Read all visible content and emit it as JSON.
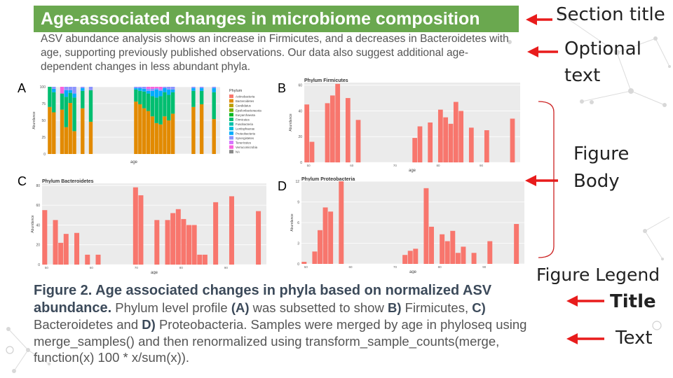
{
  "section_title": "Age-associated changes in microbiome composition",
  "intro_text": "ASV abundance analysis shows an increase in Firmicutes, and a decreases in Bacteroidetes with age, supporting previously published observations. Our data also suggest additional age-dependent changes in less abundant phyla.",
  "panels": {
    "a": {
      "letter": "A"
    },
    "b": {
      "letter": "B",
      "title": "Phylum Firmicutes"
    },
    "c": {
      "letter": "C",
      "title": "Phylum Bacteroidetes"
    },
    "d": {
      "letter": "D",
      "title": "Phylum Proteobacteria"
    }
  },
  "annotations": {
    "section_title": "Section title",
    "optional_text_1": "Optional",
    "optional_text_2": "text",
    "figure_body_1": "Figure",
    "figure_body_2": "Body",
    "figure_legend": "Figure Legend",
    "legend_title": "Title",
    "legend_text": "Text"
  },
  "caption": {
    "title_part": "Figure 2. Age associated changes in phyla based on normalized ASV abundance.",
    "t1": " Phylum level profile ",
    "b1": "(A)",
    "t2": " was subsetted to show ",
    "b2": "B)",
    "t3": " Firmicutes, ",
    "b3": "C)",
    "t4": " Bacteroidetes and ",
    "b4": "D)",
    "t5": " Proteobacteria. Samples were merged by age in phyloseq using merge_samples() and then renormalized using transform_sample_counts(merge, function(x) 100 * x/sum(x))."
  },
  "colors": {
    "green": "#6aa84f",
    "arrow": "#e81c1c",
    "bar": "#f8766d",
    "panel_bg": "#ebebeb"
  },
  "chart_data": [
    {
      "type": "bar",
      "id": "a",
      "stacked": true,
      "title": "",
      "xlabel": "age",
      "ylabel": "Abundance",
      "ylim": [
        0,
        100
      ],
      "yticks": [
        0,
        25,
        50,
        75,
        100
      ],
      "yticklabels": [
        "0",
        "25",
        "50",
        "75",
        "100"
      ],
      "legend_title": "Phylum",
      "legend": [
        "Actinobacteria",
        "Bacteroidetes",
        "Candidatus",
        "Epsilonbacteraeota",
        "Euryarchaeota",
        "Firmicutes",
        "Fusobacteria",
        "Lentisphaerae",
        "Proteobacteria",
        "Synergistetes",
        "Tenericutes",
        "Verrucomicrobia",
        "NA"
      ],
      "legend_colors": [
        "#f8766d",
        "#e28a00",
        "#bb9d00",
        "#7cae00",
        "#00b81f",
        "#00be70",
        "#00c1ab",
        "#00bbda",
        "#00acfc",
        "#8b93ff",
        "#d575fe",
        "#f962dd",
        "#888888"
      ],
      "x": [
        1,
        2,
        4,
        5,
        6,
        7,
        9,
        11,
        22,
        23,
        24,
        25,
        26,
        27,
        28,
        29,
        30,
        31,
        36,
        38,
        41
      ],
      "composition": [
        [
          0,
          70,
          0,
          0,
          0,
          30,
          0,
          0,
          0,
          0,
          0,
          0,
          0
        ],
        [
          0,
          62,
          0,
          0,
          0,
          30,
          0,
          0,
          5,
          3,
          0,
          0,
          0
        ],
        [
          0,
          66,
          0,
          0,
          0,
          24,
          0,
          0,
          0,
          0,
          0,
          10,
          0
        ],
        [
          0,
          40,
          0,
          0,
          0,
          45,
          0,
          0,
          10,
          5,
          0,
          0,
          0
        ],
        [
          0,
          76,
          0,
          0,
          0,
          15,
          0,
          0,
          4,
          5,
          0,
          0,
          0
        ],
        [
          0,
          34,
          0,
          0,
          0,
          50,
          0,
          0,
          6,
          10,
          0,
          0,
          0
        ],
        [
          0,
          68,
          0,
          0,
          0,
          26,
          0,
          0,
          4,
          2,
          0,
          0,
          0
        ],
        [
          0,
          48,
          0,
          0,
          0,
          47,
          0,
          0,
          0,
          5,
          0,
          0,
          0
        ],
        [
          0,
          78,
          0,
          0,
          0,
          18,
          0,
          0,
          2,
          2,
          0,
          0,
          0
        ],
        [
          0,
          74,
          0,
          0,
          0,
          20,
          0,
          0,
          4,
          2,
          0,
          0,
          0
        ],
        [
          0,
          68,
          0,
          0,
          0,
          25,
          0,
          0,
          4,
          3,
          0,
          0,
          0
        ],
        [
          0,
          64,
          0,
          0,
          0,
          26,
          0,
          0,
          4,
          3,
          0,
          3,
          0
        ],
        [
          0,
          56,
          0,
          0,
          0,
          30,
          0,
          0,
          8,
          3,
          0,
          3,
          0
        ],
        [
          0,
          46,
          0,
          0,
          0,
          38,
          0,
          0,
          12,
          2,
          0,
          2,
          0
        ],
        [
          0,
          44,
          0,
          0,
          0,
          42,
          0,
          0,
          8,
          2,
          0,
          4,
          0
        ],
        [
          0,
          56,
          0,
          0,
          0,
          36,
          0,
          0,
          6,
          2,
          0,
          0,
          0
        ],
        [
          0,
          50,
          0,
          0,
          0,
          38,
          0,
          0,
          8,
          4,
          0,
          0,
          0
        ],
        [
          0,
          60,
          0,
          0,
          0,
          32,
          0,
          0,
          4,
          4,
          0,
          0,
          0
        ],
        [
          0,
          70,
          0,
          0,
          0,
          24,
          0,
          0,
          4,
          2,
          0,
          0,
          0
        ],
        [
          0,
          74,
          0,
          0,
          0,
          20,
          0,
          0,
          4,
          2,
          0,
          0,
          0
        ],
        [
          0,
          52,
          0,
          0,
          0,
          40,
          0,
          0,
          6,
          2,
          0,
          0,
          0
        ]
      ]
    },
    {
      "type": "bar",
      "id": "b",
      "title": "Phylum Firmicutes",
      "xlabel": "age",
      "ylabel": "Abundance",
      "ylim": [
        0,
        62
      ],
      "yticks": [
        0,
        20,
        40,
        60
      ],
      "yticklabels": [
        "0",
        "20",
        "40",
        "60"
      ],
      "xticklabels": [
        "50",
        "60",
        "70",
        "80",
        "90"
      ],
      "x": [
        1,
        2,
        5,
        6,
        7,
        9,
        11,
        22,
        23,
        25,
        27,
        28,
        29,
        30,
        31,
        33,
        36,
        41
      ],
      "values": [
        45,
        16,
        46,
        52,
        61,
        50,
        33,
        19,
        28,
        31,
        41,
        35,
        30,
        47,
        40,
        27,
        25,
        34
      ]
    },
    {
      "type": "bar",
      "id": "c",
      "title": "Phylum Bacteroidetes",
      "xlabel": "age",
      "ylabel": "Abundance",
      "ylim": [
        0,
        82
      ],
      "yticks": [
        0,
        20,
        40,
        60,
        80
      ],
      "yticklabels": [
        "0",
        "20",
        "40",
        "60",
        "80"
      ],
      "xticklabels": [
        "50",
        "60",
        "70",
        "80",
        "90"
      ],
      "x": [
        1,
        3,
        4,
        5,
        7,
        9,
        11,
        18,
        19,
        22,
        24,
        25,
        26,
        27,
        28,
        29,
        30,
        31,
        33,
        36,
        41
      ],
      "values": [
        55,
        45,
        22,
        31,
        32,
        10,
        10,
        78,
        70,
        45,
        45,
        52,
        56,
        46,
        40,
        40,
        10,
        10,
        63,
        69,
        54
      ]
    },
    {
      "type": "bar",
      "id": "d",
      "title": "Phylum Proteobacteria",
      "xlabel": "age",
      "ylabel": "Abundance",
      "ylim": [
        0,
        12
      ],
      "yticks": [
        0,
        3,
        6,
        9,
        12
      ],
      "yticklabels": [
        "0",
        "3",
        "6",
        "9",
        "12"
      ],
      "xticklabels": [
        "50",
        "60",
        "70",
        "80",
        "90"
      ],
      "x": [
        1,
        3,
        4,
        5,
        6,
        8,
        20,
        21,
        22,
        24,
        25,
        27,
        28,
        29,
        30,
        31,
        33,
        36,
        41
      ],
      "values": [
        0.3,
        1.8,
        4.9,
        8.2,
        7.6,
        12,
        1.3,
        1.9,
        2.2,
        11,
        5.4,
        4.3,
        3.3,
        4.8,
        1.6,
        2.5,
        1.6,
        3.3,
        5.8
      ]
    }
  ]
}
